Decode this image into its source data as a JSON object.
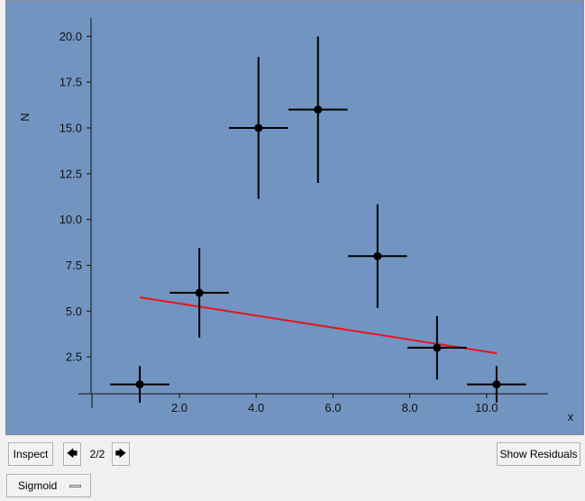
{
  "chart_data": {
    "type": "scatter",
    "xlabel": "x",
    "ylabel": "N",
    "xlim": [
      -0.3,
      11.6
    ],
    "ylim": [
      -0.3,
      21.0
    ],
    "xticks": [
      2.0,
      4.0,
      6.0,
      8.0,
      10.0
    ],
    "xtick_labels": [
      "2.0",
      "4.0",
      "6.0",
      "8.0",
      "10.0"
    ],
    "yticks": [
      2.5,
      5.0,
      7.5,
      10.0,
      12.5,
      15.0,
      17.5,
      20.0
    ],
    "ytick_labels": [
      "2.5",
      "5.0",
      "7.5",
      "10.0",
      "12.5",
      "15.0",
      "17.5",
      "20.0"
    ],
    "grid": false,
    "points": [
      {
        "x": 0.97,
        "y": 1,
        "xerr": 0.77,
        "yerr": 1.0
      },
      {
        "x": 2.52,
        "y": 6,
        "xerr": 0.77,
        "yerr": 2.45
      },
      {
        "x": 4.06,
        "y": 15,
        "xerr": 0.77,
        "yerr": 3.87
      },
      {
        "x": 5.61,
        "y": 16,
        "xerr": 0.77,
        "yerr": 4.0
      },
      {
        "x": 7.16,
        "y": 8,
        "xerr": 0.77,
        "yerr": 2.83
      },
      {
        "x": 8.71,
        "y": 3,
        "xerr": 0.77,
        "yerr": 1.73
      },
      {
        "x": 10.26,
        "y": 1,
        "xerr": 0.77,
        "yerr": 1.0
      }
    ],
    "fit_line": {
      "x": [
        0.97,
        10.26
      ],
      "y": [
        5.75,
        2.7
      ],
      "color": "#e8141c"
    },
    "background_color": "#7194c1",
    "marker_color": "#000000"
  },
  "toolbar": {
    "inspect_label": "Inspect",
    "prev_icon": "left-arrow-icon",
    "prev_glyph": "🡄",
    "page_indicator": "2/2",
    "next_icon": "right-arrow-icon",
    "next_glyph": "🡆",
    "residuals_label": "Show Residuals"
  },
  "model_selector": {
    "selected": "Sigmoid"
  }
}
